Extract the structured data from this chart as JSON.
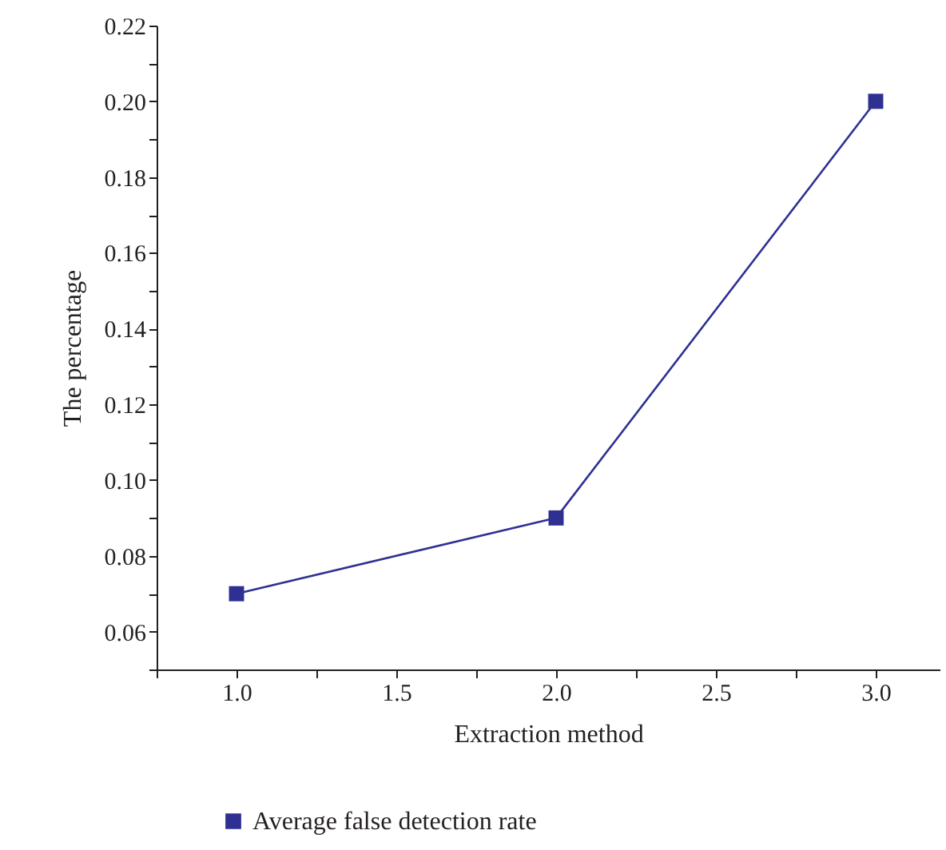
{
  "chart_data": {
    "type": "line",
    "xlabel": "Extraction method",
    "ylabel": "The percentage",
    "x": [
      1,
      2,
      3
    ],
    "series": [
      {
        "name": "Average false detection rate",
        "color": "#2e3192",
        "values": [
          0.07,
          0.09,
          0.2
        ]
      }
    ],
    "xlim": [
      0.75,
      3.2
    ],
    "xticks": [
      {
        "value": 0.75,
        "label": null
      },
      {
        "value": 1,
        "label": "1.0"
      },
      {
        "value": 1.25,
        "label": null
      },
      {
        "value": 1.5,
        "label": "1.5"
      },
      {
        "value": 1.75,
        "label": null
      },
      {
        "value": 2,
        "label": "2.0"
      },
      {
        "value": 2.25,
        "label": null
      },
      {
        "value": 2.5,
        "label": "2.5"
      },
      {
        "value": 2.75,
        "label": null
      },
      {
        "value": 3,
        "label": "3.0"
      }
    ],
    "ylim": [
      0.05,
      0.22
    ],
    "yticks": [
      {
        "value": 0.05,
        "label": null
      },
      {
        "value": 0.06,
        "label": "0.06"
      },
      {
        "value": 0.07,
        "label": null
      },
      {
        "value": 0.08,
        "label": "0.08"
      },
      {
        "value": 0.09,
        "label": null
      },
      {
        "value": 0.1,
        "label": "0.10"
      },
      {
        "value": 0.11,
        "label": null
      },
      {
        "value": 0.12,
        "label": "0.12"
      },
      {
        "value": 0.13,
        "label": null
      },
      {
        "value": 0.14,
        "label": "0.14"
      },
      {
        "value": 0.15,
        "label": null
      },
      {
        "value": 0.16,
        "label": "0.16"
      },
      {
        "value": 0.17,
        "label": null
      },
      {
        "value": 0.18,
        "label": "0.18"
      },
      {
        "value": 0.19,
        "label": null
      },
      {
        "value": 0.2,
        "label": "0.20"
      },
      {
        "value": 0.21,
        "label": null
      },
      {
        "value": 0.22,
        "label": "0.22"
      }
    ],
    "grid": false,
    "legend": "bottom",
    "marker": "square",
    "line_style": "solid"
  }
}
